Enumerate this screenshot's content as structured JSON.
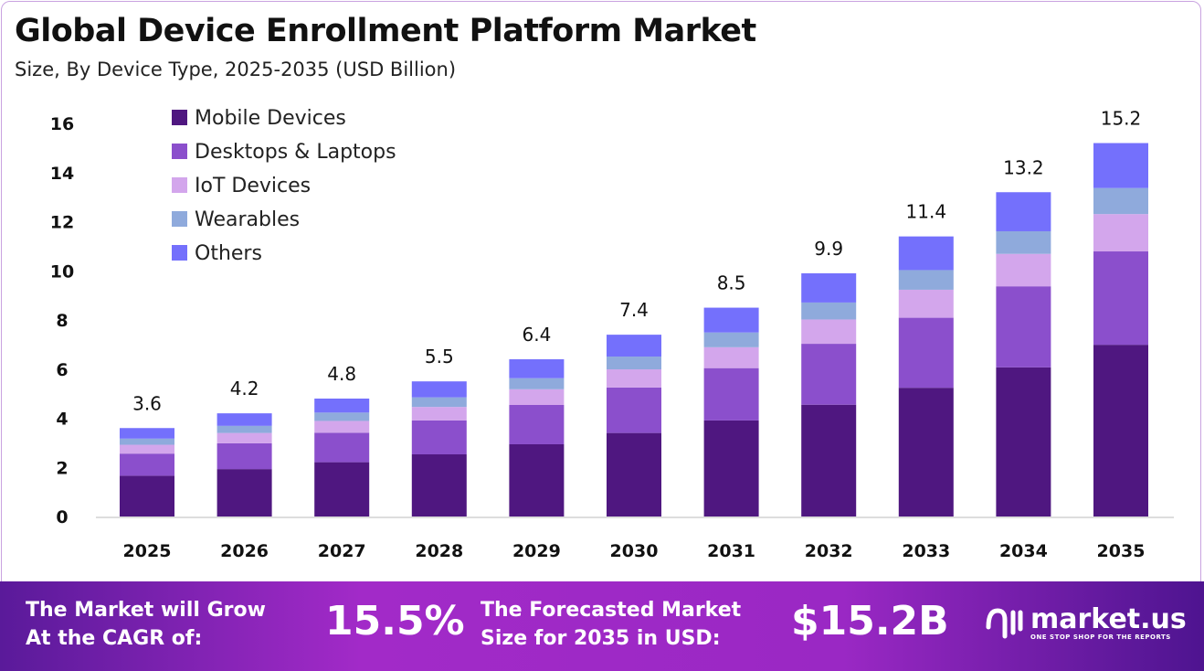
{
  "chart_data": {
    "type": "bar",
    "stacked": true,
    "title": "Global Device Enrollment Platform Market",
    "subtitle": "Size, By Device Type, 2025-2035 (USD Billion)",
    "categories": [
      "2025",
      "2026",
      "2027",
      "2028",
      "2029",
      "2030",
      "2031",
      "2032",
      "2033",
      "2034",
      "2035"
    ],
    "totals": [
      "3.6",
      "4.2",
      "4.8",
      "5.5",
      "6.4",
      "7.4",
      "8.5",
      "9.9",
      "11.4",
      "13.2",
      "15.2"
    ],
    "series": [
      {
        "name": "Mobile Devices",
        "color": "#4f1780",
        "values": [
          1.66,
          1.93,
          2.21,
          2.53,
          2.94,
          3.4,
          3.91,
          4.55,
          5.24,
          6.07,
          6.99
        ]
      },
      {
        "name": "Desktops & Laptops",
        "color": "#8b4fcc",
        "values": [
          0.9,
          1.05,
          1.2,
          1.38,
          1.6,
          1.85,
          2.13,
          2.48,
          2.85,
          3.3,
          3.8
        ]
      },
      {
        "name": "IoT Devices",
        "color": "#d3a6ec",
        "values": [
          0.36,
          0.42,
          0.48,
          0.55,
          0.64,
          0.74,
          0.85,
          0.99,
          1.14,
          1.32,
          1.52
        ]
      },
      {
        "name": "Wearables",
        "color": "#8faadc",
        "values": [
          0.25,
          0.29,
          0.34,
          0.39,
          0.45,
          0.52,
          0.6,
          0.69,
          0.8,
          0.92,
          1.06
        ]
      },
      {
        "name": "Others",
        "color": "#7470fc",
        "values": [
          0.43,
          0.51,
          0.57,
          0.65,
          0.77,
          0.89,
          1.01,
          1.19,
          1.37,
          1.59,
          1.83
        ]
      }
    ],
    "yticks": [
      "0",
      "2",
      "4",
      "6",
      "8",
      "10",
      "12",
      "14",
      "16"
    ],
    "ylim": [
      0,
      16
    ],
    "grid": false,
    "legend": "top-left"
  },
  "footer": {
    "cagr_label_1": "The Market will Grow",
    "cagr_label_2": "At the CAGR of:",
    "cagr_value": "15.5%",
    "forecast_label_1": "The Forecasted Market",
    "forecast_label_2": "Size for 2035 in USD:",
    "forecast_value": "$15.2B",
    "logo_name": "market.us",
    "logo_tagline": "ONE STOP SHOP FOR THE REPORTS"
  }
}
